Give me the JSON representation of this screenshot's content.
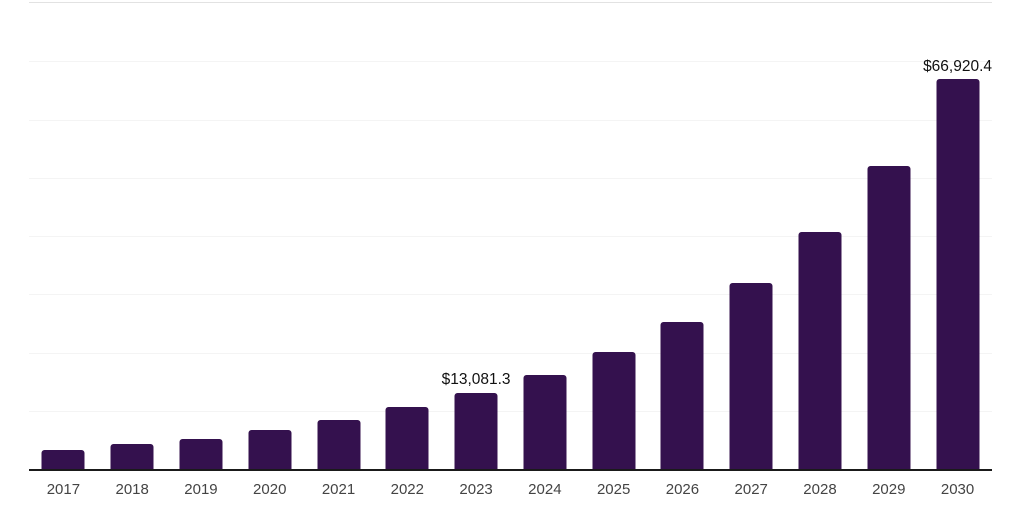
{
  "chart_data": {
    "type": "bar",
    "title": "",
    "xlabel": "",
    "ylabel": "",
    "categories": [
      "2017",
      "2018",
      "2019",
      "2020",
      "2021",
      "2022",
      "2023",
      "2024",
      "2025",
      "2026",
      "2027",
      "2028",
      "2029",
      "2030"
    ],
    "values": [
      3300,
      4320,
      5180,
      6720,
      8440,
      10600,
      13081.3,
      16150,
      20150,
      25180,
      31860,
      40610,
      52050,
      66920.4
    ],
    "data_labels": {
      "2023": "$13,081.3",
      "2030": "$66,920.4"
    },
    "ylim": [
      0,
      80000
    ],
    "gridline_interval": 10000,
    "grid": true,
    "legend": false,
    "y_axis_tick_labels_visible": false,
    "colors": {
      "bar": "#34114e",
      "baseline": "#1a1a1a",
      "gridline": "#f4f4f4",
      "top_line": "#e2e2e2",
      "data_label": "#111111",
      "tick_label": "#444444",
      "background": "#ffffff"
    }
  }
}
